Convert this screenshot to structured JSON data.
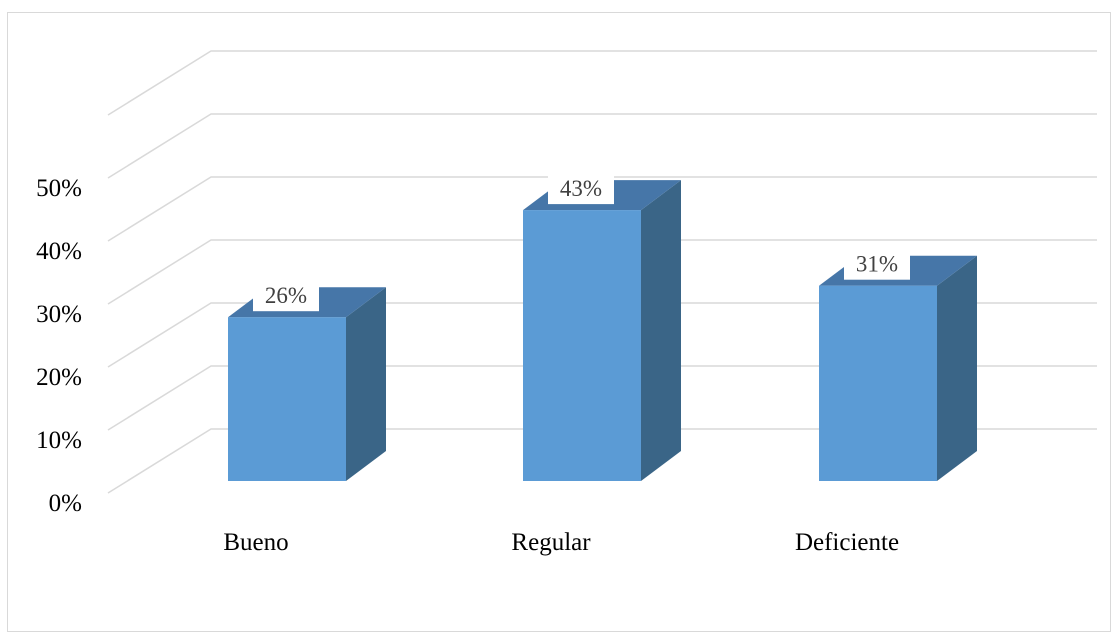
{
  "chart_data": {
    "type": "bar",
    "style": "3d-column",
    "categories": [
      "Bueno",
      "Regular",
      "Deficiente"
    ],
    "values": [
      26,
      43,
      31
    ],
    "data_labels": [
      "26%",
      "43%",
      "31%"
    ],
    "y_ticks": [
      "0%",
      "10%",
      "20%",
      "30%",
      "40%",
      "50%"
    ],
    "ylim": [
      0,
      60
    ],
    "y_unit": "%",
    "grid": true,
    "legend": "none",
    "title": "",
    "xlabel": "",
    "ylabel": ""
  },
  "colors": {
    "bar_front": "#5b9bd5",
    "bar_side": "#3a6587",
    "bar_top": "#4676a8",
    "grid": "#d9d9d9",
    "frame": "#d9d9d9",
    "label_box": "#ffffff"
  }
}
